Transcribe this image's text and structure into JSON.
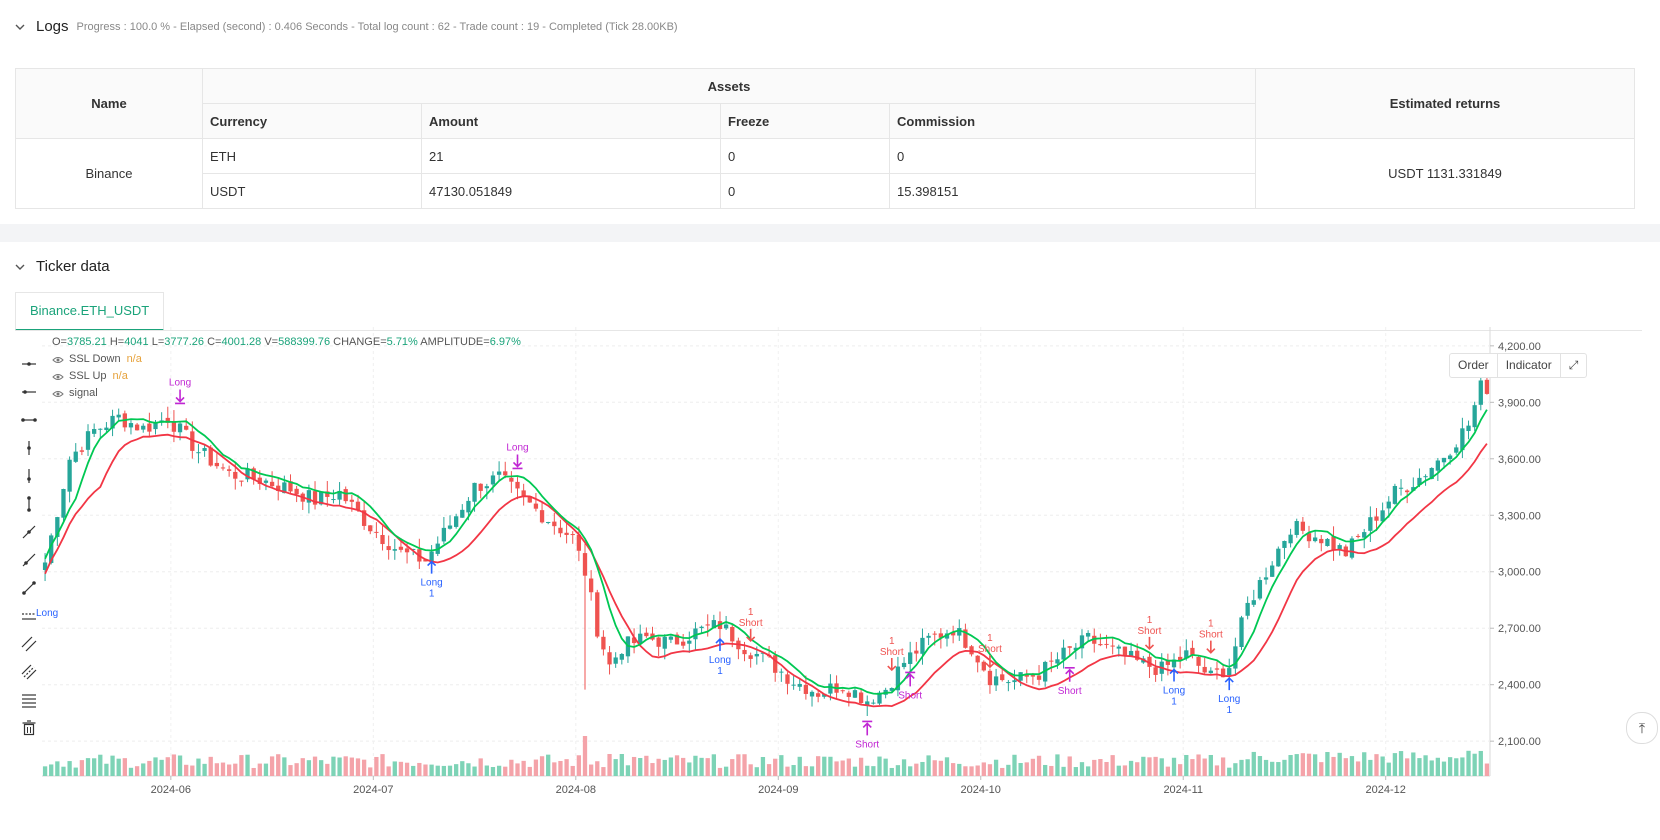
{
  "logs": {
    "title": "Logs",
    "meta": "Progress : 100.0 % - Elapsed (second) : 0.406 Seconds - Total log count : 62 - Trade count : 19 - Completed (Tick 28.00KB)"
  },
  "assets_table": {
    "header_name": "Name",
    "header_assets": "Assets",
    "header_returns": "Estimated returns",
    "sub_headers": [
      "Currency",
      "Amount",
      "Freeze",
      "Commission"
    ],
    "exchange": "Binance",
    "rows": [
      {
        "currency": "ETH",
        "amount": "21",
        "freeze": "0",
        "commission": "0"
      },
      {
        "currency": "USDT",
        "amount": "47130.051849",
        "freeze": "0",
        "commission": "15.398151"
      }
    ],
    "returns": "USDT 1131.331849"
  },
  "ticker": {
    "title": "Ticker data",
    "tab": "Binance.ETH_USDT",
    "btn_order": "Order",
    "btn_indicator": "Indicator"
  },
  "legend": {
    "o_label": "O=",
    "o": "3785.21",
    "h_label": "H=",
    "h": "4041",
    "l_label": "L=",
    "l": "3777.26",
    "c_label": "C=",
    "c": "4001.28",
    "vol_label": "V=",
    "vol": "588399.76",
    "chg_label": "CHANGE=",
    "chg": "5.71%",
    "amp_label": "AMPLITUDE=",
    "amp": "6.97%",
    "series": [
      {
        "name": "SSL Down",
        "value": "n/a"
      },
      {
        "name": "SSL Up",
        "value": "n/a"
      },
      {
        "name": "signal",
        "value": ""
      }
    ]
  },
  "colors": {
    "up": "#26a69a",
    "down": "#ef5350",
    "ssl_up": "#00c853",
    "ssl_down": "#f23645",
    "long": "#2962ff",
    "short": "#c026d3"
  },
  "chart_data": {
    "type": "candlestick",
    "y_ticks": [
      "4,200.00",
      "3,900.00",
      "3,600.00",
      "3,300.00",
      "3,000.00",
      "2,700.00",
      "2,400.00",
      "2,100.00"
    ],
    "y_tick_values": [
      4200,
      3900,
      3600,
      3300,
      3000,
      2700,
      2400,
      2100
    ],
    "x_ticks": [
      "2024-06",
      "2024-07",
      "2024-08",
      "2024-09",
      "2024-10",
      "2024-11",
      "2024-12"
    ],
    "ylim": [
      2000,
      4300
    ],
    "anchors": [
      [
        0,
        3050
      ],
      [
        4,
        3600
      ],
      [
        8,
        3750
      ],
      [
        12,
        3820
      ],
      [
        16,
        3760
      ],
      [
        20,
        3820
      ],
      [
        25,
        3640
      ],
      [
        30,
        3520
      ],
      [
        35,
        3490
      ],
      [
        40,
        3440
      ],
      [
        44,
        3380
      ],
      [
        48,
        3420
      ],
      [
        53,
        3240
      ],
      [
        58,
        3100
      ],
      [
        62,
        3060
      ],
      [
        66,
        3250
      ],
      [
        70,
        3450
      ],
      [
        74,
        3500
      ],
      [
        78,
        3380
      ],
      [
        82,
        3280
      ],
      [
        86,
        3180
      ],
      [
        88,
        3000
      ],
      [
        90,
        2700
      ],
      [
        92,
        2500
      ],
      [
        94,
        2600
      ],
      [
        98,
        2650
      ],
      [
        102,
        2620
      ],
      [
        106,
        2680
      ],
      [
        110,
        2720
      ],
      [
        114,
        2600
      ],
      [
        118,
        2520
      ],
      [
        122,
        2420
      ],
      [
        126,
        2360
      ],
      [
        130,
        2400
      ],
      [
        134,
        2320
      ],
      [
        137,
        2380
      ],
      [
        140,
        2520
      ],
      [
        144,
        2640
      ],
      [
        148,
        2700
      ],
      [
        151,
        2600
      ],
      [
        154,
        2440
      ],
      [
        158,
        2420
      ],
      [
        162,
        2460
      ],
      [
        166,
        2560
      ],
      [
        170,
        2640
      ],
      [
        174,
        2580
      ],
      [
        178,
        2520
      ],
      [
        182,
        2480
      ],
      [
        186,
        2560
      ],
      [
        190,
        2440
      ],
      [
        193,
        2500
      ],
      [
        196,
        2820
      ],
      [
        199,
        3000
      ],
      [
        203,
        3240
      ],
      [
        208,
        3180
      ],
      [
        212,
        3100
      ],
      [
        216,
        3260
      ],
      [
        220,
        3420
      ],
      [
        224,
        3500
      ],
      [
        228,
        3620
      ],
      [
        232,
        3780
      ],
      [
        234,
        3980
      ]
    ],
    "signals": [
      {
        "label": "Long",
        "idx": 22,
        "type": "long_exit",
        "qty": ""
      },
      {
        "label": "Long",
        "idx": 77,
        "type": "long_exit",
        "qty": ""
      },
      {
        "label": "Long",
        "idx": 63,
        "type": "long",
        "qty": "1"
      },
      {
        "label": "Long",
        "idx": 110,
        "type": "long",
        "qty": "1"
      },
      {
        "label": "Short",
        "idx": 115,
        "type": "short",
        "qty": "1"
      },
      {
        "label": "Short",
        "idx": 134,
        "type": "short_exit",
        "qty": ""
      },
      {
        "label": "Short",
        "idx": 138,
        "type": "short",
        "qty": "1"
      },
      {
        "label": "Short",
        "idx": 141,
        "type": "short_exit",
        "qty": ""
      },
      {
        "label": "Short",
        "idx": 154,
        "type": "short",
        "qty": "1"
      },
      {
        "label": "Short",
        "idx": 167,
        "type": "short_exit",
        "qty": ""
      },
      {
        "label": "Short",
        "idx": 180,
        "type": "short",
        "qty": "1"
      },
      {
        "label": "Long",
        "idx": 184,
        "type": "long",
        "qty": "1"
      },
      {
        "label": "Short",
        "idx": 190,
        "type": "short",
        "qty": "1"
      },
      {
        "label": "Long",
        "idx": 193,
        "type": "long",
        "qty": "1"
      }
    ],
    "edge_label": "Long"
  }
}
